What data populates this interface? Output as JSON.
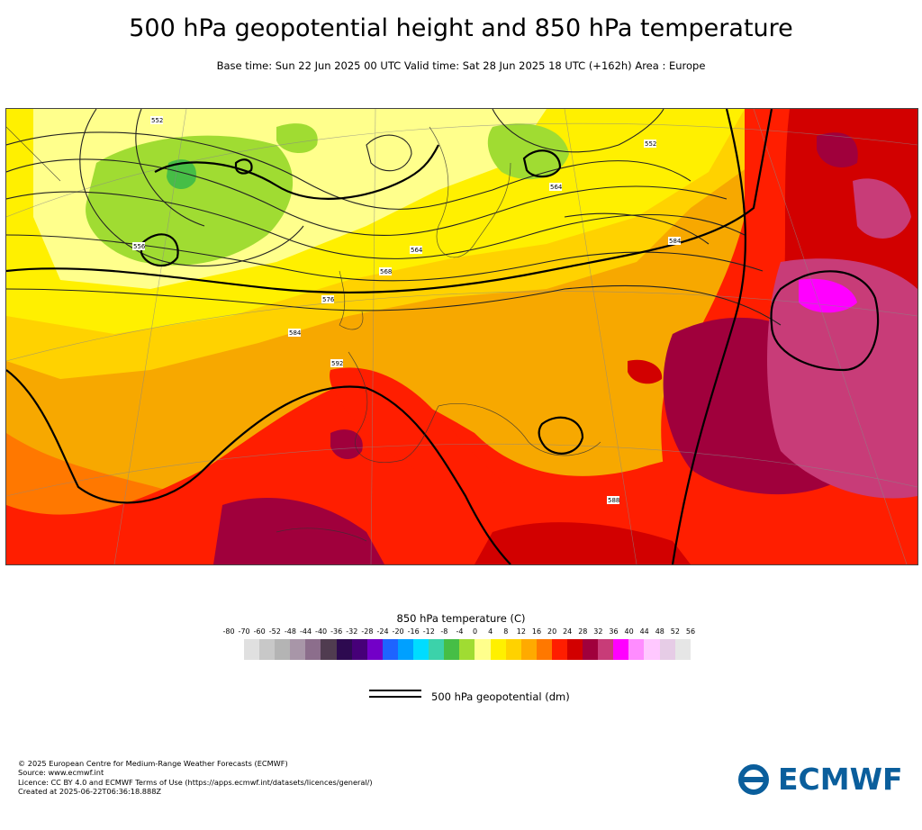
{
  "header": {
    "title": "500 hPa geopotential height and 850 hPa temperature",
    "subtitle": "Base time: Sun 22 Jun 2025 00 UTC Valid time: Sat 28 Jun 2025 18 UTC (+162h) Area : Europe"
  },
  "colorbar": {
    "title": "850 hPa temperature (C)",
    "ticks": [
      "-80",
      "-70",
      "-60",
      "-52",
      "-48",
      "-44",
      "-40",
      "-36",
      "-32",
      "-28",
      "-24",
      "-20",
      "-16",
      "-12",
      "-8",
      "-4",
      "0",
      "4",
      "8",
      "12",
      "16",
      "20",
      "24",
      "28",
      "32",
      "36",
      "40",
      "44",
      "48",
      "52",
      "56"
    ],
    "colors": [
      "#e0e0e0",
      "#c8c8c8",
      "#b4b4b4",
      "#a896a8",
      "#8c6e8c",
      "#503c50",
      "#2d0a50",
      "#460078",
      "#7300c8",
      "#1e64ff",
      "#00a0ff",
      "#00dcff",
      "#3cd2aa",
      "#46be46",
      "#a0dc32",
      "#ffff8c",
      "#fff000",
      "#ffd200",
      "#ffaa00",
      "#ff7800",
      "#ff1e00",
      "#d20000",
      "#a0003c",
      "#c83c78",
      "#ff00ff",
      "#ff8cff",
      "#ffc8ff",
      "#e6cce6",
      "#e6e6e6"
    ]
  },
  "legend": {
    "contour_label": "500 hPa geopotential (dm)"
  },
  "map_labels": {
    "z_552_nw": "552",
    "z_556": "556",
    "z_564": "564",
    "z_560_ne": "552",
    "z_568": "568",
    "z_576": "576",
    "z_584": "584",
    "z_592": "592",
    "z_580_e": "584",
    "z_588_se": "588",
    "z_564_n": "564"
  },
  "footer": {
    "copyright": "© 2025 European Centre for Medium-Range Weather Forecasts (ECMWF)",
    "source": "Source: www.ecmwf.int",
    "licence": "Licence: CC BY 4.0 and ECMWF Terms of Use (https://apps.ecmwf.int/datasets/licences/general/)",
    "created": "Created at 2025-06-22T06:36:18.888Z"
  },
  "logo": {
    "text": "ECMWF",
    "color": "#0a5e9c"
  }
}
